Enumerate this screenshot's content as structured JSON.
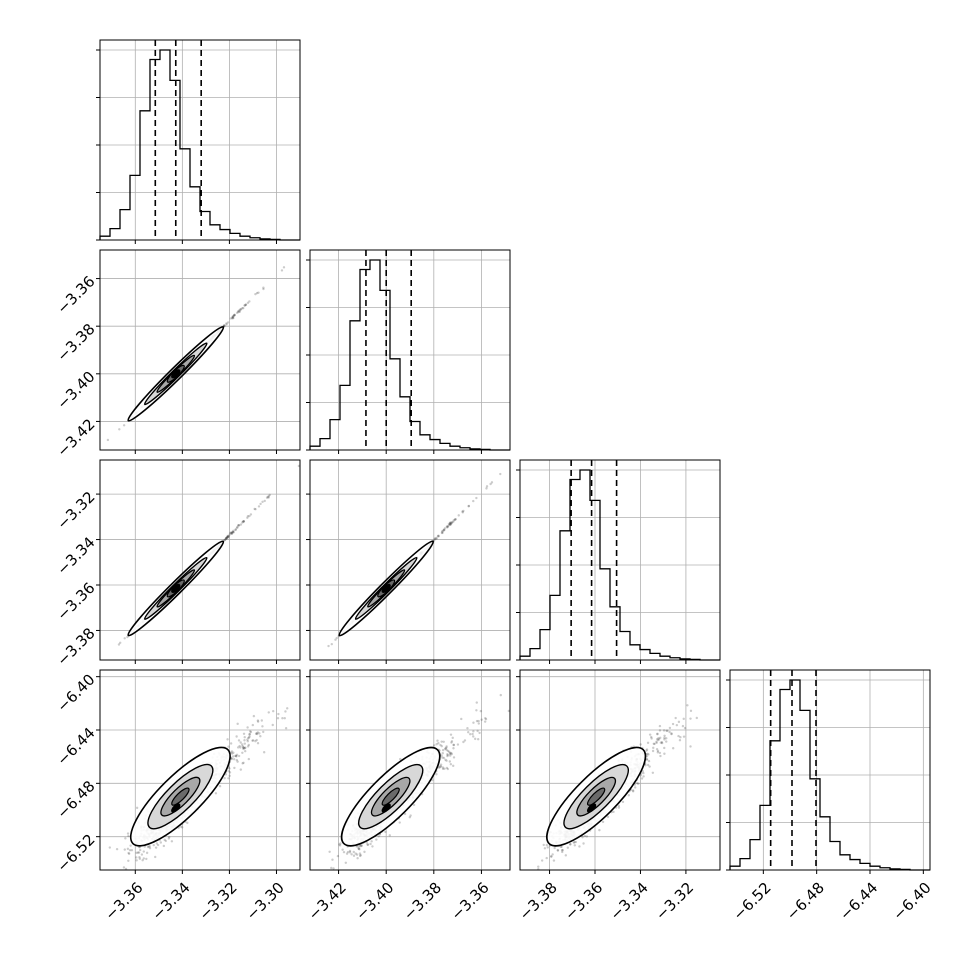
{
  "chart_data": {
    "type": "corner",
    "parameters": [
      {
        "name": "",
        "range": [
          -3.375,
          -3.29
        ],
        "ticks": [
          -3.36,
          -3.34,
          -3.32,
          -3.3
        ],
        "tick_labels": [
          "−3.36",
          "−3.34",
          "−3.32",
          "−3.30"
        ],
        "quantiles": [
          -3.3515,
          -3.3428,
          -3.332
        ],
        "hist": [
          0.02,
          0.06,
          0.16,
          0.34,
          0.68,
          0.95,
          1.0,
          0.84,
          0.48,
          0.28,
          0.15,
          0.08,
          0.055,
          0.035,
          0.02,
          0.012,
          0.006,
          0.003,
          0.0,
          0.0
        ]
      },
      {
        "name": "",
        "range": [
          -3.432,
          -3.348
        ],
        "ticks": [
          -3.42,
          -3.4,
          -3.38,
          -3.36
        ],
        "tick_labels": [
          "−3.42",
          "−3.40",
          "−3.38",
          "−3.36"
        ],
        "quantiles": [
          -3.4085,
          -3.4,
          -3.3895
        ],
        "hist": [
          0.02,
          0.06,
          0.16,
          0.34,
          0.68,
          0.95,
          1.0,
          0.84,
          0.48,
          0.28,
          0.15,
          0.08,
          0.055,
          0.035,
          0.02,
          0.012,
          0.006,
          0.003,
          0.0,
          0.0
        ]
      },
      {
        "name": "",
        "range": [
          -3.393,
          -3.305
        ],
        "ticks": [
          -3.38,
          -3.36,
          -3.34,
          -3.32
        ],
        "tick_labels": [
          "−3.38",
          "−3.36",
          "−3.34",
          "−3.32"
        ],
        "quantiles": [
          -3.3705,
          -3.3615,
          -3.3505
        ],
        "hist": [
          0.02,
          0.06,
          0.16,
          0.34,
          0.68,
          0.95,
          1.0,
          0.84,
          0.48,
          0.28,
          0.15,
          0.08,
          0.055,
          0.035,
          0.02,
          0.012,
          0.006,
          0.003,
          0.0,
          0.0
        ]
      },
      {
        "name": "",
        "range": [
          -6.545,
          -6.395
        ],
        "ticks": [
          -6.52,
          -6.48,
          -6.44,
          -6.4
        ],
        "tick_labels": [
          "−6.52",
          "−6.48",
          "−6.44",
          "−6.40"
        ],
        "quantiles": [
          -6.5145,
          -6.4985,
          -6.4805
        ],
        "hist": [
          0.02,
          0.06,
          0.16,
          0.34,
          0.68,
          0.95,
          1.0,
          0.84,
          0.48,
          0.28,
          0.15,
          0.08,
          0.055,
          0.035,
          0.02,
          0.012,
          0.006,
          0.003,
          0.0,
          0.0
        ]
      }
    ],
    "truths": null,
    "grid": true,
    "histogram_style": "step",
    "quantile_line_style": "dashed",
    "contour_levels": 4,
    "colors": {
      "line": "#000000",
      "grid": "#b0b0b0",
      "points": "#333333",
      "contour_fill_light": "#d8d8d8",
      "contour_fill_mid": "#a8a8a8",
      "contour_fill_dark": "#6a6a6a"
    }
  }
}
